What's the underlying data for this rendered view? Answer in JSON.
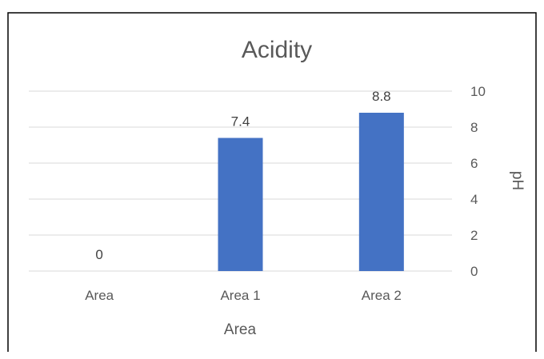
{
  "chart_data": {
    "type": "bar",
    "title": "Acidity",
    "categories": [
      "Area",
      "Area 1",
      "Area 2"
    ],
    "values": [
      0,
      7.4,
      8.8
    ],
    "data_labels": [
      "0",
      "7.4",
      "8.8"
    ],
    "xlabel": "Area",
    "ylabel": "pH",
    "ylim": [
      0,
      10
    ],
    "yticks": [
      "0",
      "2",
      "4",
      "6",
      "8",
      "10"
    ],
    "y_axis_side": "right",
    "grid": true,
    "legend": "none",
    "bar_color": "#4472C4"
  }
}
